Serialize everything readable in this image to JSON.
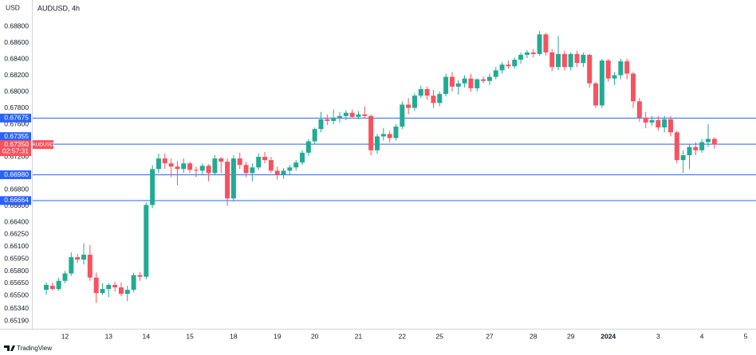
{
  "chart_data": {
    "type": "candlestick",
    "title": "AUDUSD, 4h",
    "y_label": "USD",
    "categories": [
      null,
      null,
      null,
      "12",
      null,
      null,
      null,
      null,
      null,
      null,
      "13",
      null,
      null,
      null,
      null,
      null,
      "14",
      null,
      null,
      null,
      null,
      null,
      null,
      "15",
      null,
      null,
      null,
      null,
      null,
      null,
      "18",
      null,
      null,
      null,
      null,
      null,
      null,
      "19",
      null,
      null,
      null,
      null,
      null,
      "20",
      null,
      null,
      null,
      null,
      null,
      null,
      "21",
      null,
      null,
      null,
      null,
      null,
      null,
      "22",
      null,
      null,
      null,
      null,
      null,
      "25",
      null,
      null,
      null,
      null,
      null,
      null,
      null,
      "27",
      null,
      null,
      null,
      null,
      null,
      null,
      "28",
      null,
      null,
      null,
      null,
      null,
      "29",
      null,
      null,
      null,
      null,
      null,
      "2024",
      null,
      null,
      null,
      null,
      null,
      null,
      null,
      "3",
      null,
      null,
      null,
      null,
      null,
      null,
      "4",
      null,
      null,
      null,
      null,
      null,
      null,
      "5"
    ],
    "open": [
      0.6557,
      0.6562,
      0.6558,
      0.6568,
      0.6577,
      0.6597,
      0.6594,
      0.66,
      0.6572,
      0.6553,
      0.6558,
      0.6563,
      0.656,
      0.6552,
      0.6557,
      0.6575,
      0.6573,
      0.6661,
      0.6705,
      0.6718,
      0.6712,
      0.6708,
      0.6705,
      0.6712,
      0.6704,
      0.6703,
      0.6709,
      0.67,
      0.6718,
      0.6714,
      0.6669,
      0.6718,
      0.671,
      0.67,
      0.6707,
      0.672,
      0.6716,
      0.6703,
      0.6698,
      0.6703,
      0.6707,
      0.6713,
      0.6725,
      0.6739,
      0.6754,
      0.6766,
      0.6764,
      0.6768,
      0.677,
      0.6774,
      0.6769,
      0.6772,
      0.677,
      0.6728,
      0.6745,
      0.6748,
      0.6743,
      0.6757,
      0.6784,
      0.678,
      0.6795,
      0.6803,
      0.6795,
      0.6786,
      0.6797,
      0.6818,
      0.6806,
      0.681,
      0.6816,
      0.6804,
      0.6815,
      0.6813,
      0.6818,
      0.6826,
      0.6833,
      0.6831,
      0.6839,
      0.6845,
      0.6848,
      0.6846,
      0.687,
      0.6848,
      0.683,
      0.6846,
      0.683,
      0.6846,
      0.6835,
      0.6845,
      0.681,
      0.6783,
      0.6838,
      0.6816,
      0.682,
      0.6837,
      0.6822,
      0.6788,
      0.6768,
      0.6762,
      0.6765,
      0.6756,
      0.6766,
      0.675,
      0.6716,
      0.6722,
      0.6732,
      0.6728,
      0.6738,
      0.6742,
      null,
      null,
      null,
      null,
      null
    ],
    "high": [
      0.6566,
      0.6566,
      0.6572,
      0.658,
      0.6603,
      0.6601,
      0.6614,
      0.6612,
      0.6578,
      0.6565,
      0.6565,
      0.6567,
      0.6566,
      0.6562,
      0.6578,
      0.6579,
      0.6664,
      0.671,
      0.6724,
      0.6724,
      0.6718,
      0.6715,
      0.6718,
      0.6714,
      0.6708,
      0.6712,
      0.6711,
      0.6722,
      0.672,
      0.6718,
      0.6722,
      0.6725,
      0.6714,
      0.6712,
      0.6724,
      0.6726,
      0.672,
      0.6708,
      0.6706,
      0.671,
      0.6716,
      0.6728,
      0.6742,
      0.6756,
      0.6775,
      0.6772,
      0.6778,
      0.6775,
      0.6777,
      0.6778,
      0.6776,
      0.6782,
      0.6772,
      0.6748,
      0.6755,
      0.6752,
      0.676,
      0.6788,
      0.6792,
      0.6798,
      0.6807,
      0.6806,
      0.6802,
      0.68,
      0.6822,
      0.6824,
      0.6814,
      0.682,
      0.6822,
      0.6816,
      0.6818,
      0.6822,
      0.683,
      0.6836,
      0.6838,
      0.6842,
      0.6848,
      0.6851,
      0.6852,
      0.6874,
      0.6872,
      0.6852,
      0.6868,
      0.685,
      0.6848,
      0.685,
      0.6848,
      0.6846,
      0.6812,
      0.684,
      0.684,
      0.6824,
      0.684,
      0.684,
      0.6824,
      0.6792,
      0.6775,
      0.677,
      0.677,
      0.677,
      0.677,
      0.6752,
      0.6728,
      0.6735,
      0.6738,
      0.6742,
      0.676,
      0.6744,
      null,
      null,
      null,
      null,
      null
    ],
    "low": [
      0.6551,
      0.6556,
      0.6556,
      0.6565,
      0.6574,
      0.659,
      0.6588,
      0.6568,
      0.6541,
      0.6551,
      0.6548,
      0.6555,
      0.6549,
      0.6543,
      0.6554,
      0.6568,
      0.657,
      0.6657,
      0.67,
      0.6705,
      0.6695,
      0.6685,
      0.67,
      0.67,
      0.6695,
      0.6698,
      0.669,
      0.6698,
      0.67,
      0.666,
      0.6665,
      0.6705,
      0.6695,
      0.669,
      0.6704,
      0.6712,
      0.67,
      0.6692,
      0.6693,
      0.6698,
      0.6703,
      0.671,
      0.6721,
      0.6736,
      0.675,
      0.6759,
      0.676,
      0.6762,
      0.6765,
      0.6767,
      0.6766,
      0.6767,
      0.6722,
      0.6724,
      0.674,
      0.6738,
      0.674,
      0.6754,
      0.6772,
      0.6776,
      0.6792,
      0.679,
      0.678,
      0.6782,
      0.6794,
      0.68,
      0.6796,
      0.6805,
      0.68,
      0.68,
      0.681,
      0.6808,
      0.6815,
      0.6822,
      0.6828,
      0.6828,
      0.6834,
      0.6841,
      0.6842,
      0.6844,
      0.6844,
      0.6825,
      0.6826,
      0.6826,
      0.6826,
      0.683,
      0.683,
      0.6805,
      0.678,
      0.678,
      0.6812,
      0.6808,
      0.6815,
      0.6815,
      0.678,
      0.6763,
      0.6755,
      0.6758,
      0.6752,
      0.675,
      0.6745,
      0.6712,
      0.67,
      0.6705,
      0.6722,
      0.6725,
      0.6732,
      0.673,
      null,
      null,
      null,
      null,
      null
    ],
    "close": [
      0.6563,
      0.6558,
      0.6568,
      0.6577,
      0.6597,
      0.6594,
      0.66,
      0.6572,
      0.6553,
      0.6558,
      0.6563,
      0.656,
      0.6552,
      0.6557,
      0.6575,
      0.6573,
      0.6661,
      0.6705,
      0.6718,
      0.6712,
      0.6708,
      0.6705,
      0.6712,
      0.6704,
      0.6703,
      0.6709,
      0.67,
      0.6718,
      0.6714,
      0.6669,
      0.6718,
      0.671,
      0.67,
      0.6707,
      0.672,
      0.6716,
      0.6703,
      0.6698,
      0.6703,
      0.6707,
      0.6713,
      0.6725,
      0.6739,
      0.6754,
      0.6766,
      0.6764,
      0.6768,
      0.677,
      0.6774,
      0.6769,
      0.6772,
      0.677,
      0.6728,
      0.6745,
      0.6748,
      0.6743,
      0.6757,
      0.6784,
      0.678,
      0.6795,
      0.6803,
      0.6795,
      0.6786,
      0.6797,
      0.6818,
      0.6806,
      0.681,
      0.6816,
      0.6804,
      0.6815,
      0.6813,
      0.6818,
      0.6826,
      0.6833,
      0.6831,
      0.6839,
      0.6845,
      0.6848,
      0.6846,
      0.687,
      0.6848,
      0.683,
      0.6846,
      0.683,
      0.6846,
      0.6835,
      0.6845,
      0.681,
      0.6783,
      0.6838,
      0.6816,
      0.682,
      0.6837,
      0.6822,
      0.6788,
      0.6768,
      0.6762,
      0.6765,
      0.6756,
      0.6766,
      0.675,
      0.6716,
      0.6722,
      0.6732,
      0.6728,
      0.6738,
      0.6742,
      0.6735,
      null,
      null,
      null,
      null,
      null
    ],
    "up_color": "#22ab94",
    "down_color": "#f7525f",
    "ylim": [
      0.65093,
      0.69122
    ],
    "yticks": [
      {
        "value": 0.688,
        "label": "0.68800"
      },
      {
        "value": 0.686,
        "label": "0.68600"
      },
      {
        "value": 0.684,
        "label": "0.68400"
      },
      {
        "value": 0.682,
        "label": "0.68200"
      },
      {
        "value": 0.68,
        "label": "0.68000"
      },
      {
        "value": 0.678,
        "label": "0.67800"
      },
      {
        "value": 0.676,
        "label": "0.67600"
      },
      {
        "value": 0.672,
        "label": "0.67200"
      },
      {
        "value": 0.668,
        "label": "0.66800"
      },
      {
        "value": 0.666,
        "label": "0.66600"
      },
      {
        "value": 0.664,
        "label": "0.66400"
      },
      {
        "value": 0.6625,
        "label": "0.66250"
      },
      {
        "value": 0.661,
        "label": "0.66100"
      },
      {
        "value": 0.6595,
        "label": "0.65950"
      },
      {
        "value": 0.658,
        "label": "0.65800"
      },
      {
        "value": 0.6565,
        "label": "0.65650"
      },
      {
        "value": 0.655,
        "label": "0.65500"
      },
      {
        "value": 0.6534,
        "label": "0.65340"
      },
      {
        "value": 0.6519,
        "label": "0.65190"
      }
    ],
    "hlines": [
      {
        "value": 0.67675,
        "label": "0.67675"
      },
      {
        "value": 0.67355,
        "label": "0.67355"
      },
      {
        "value": 0.6698,
        "label": "0.66980"
      },
      {
        "value": 0.66664,
        "label": "0.66664"
      }
    ],
    "hline_color": "#2962ff",
    "last_price": {
      "value": 0.6735,
      "label": "0.67350",
      "countdown": "02:57:31",
      "symbol": "AUDUSD"
    },
    "grid": false
  },
  "footer": "TradingView"
}
